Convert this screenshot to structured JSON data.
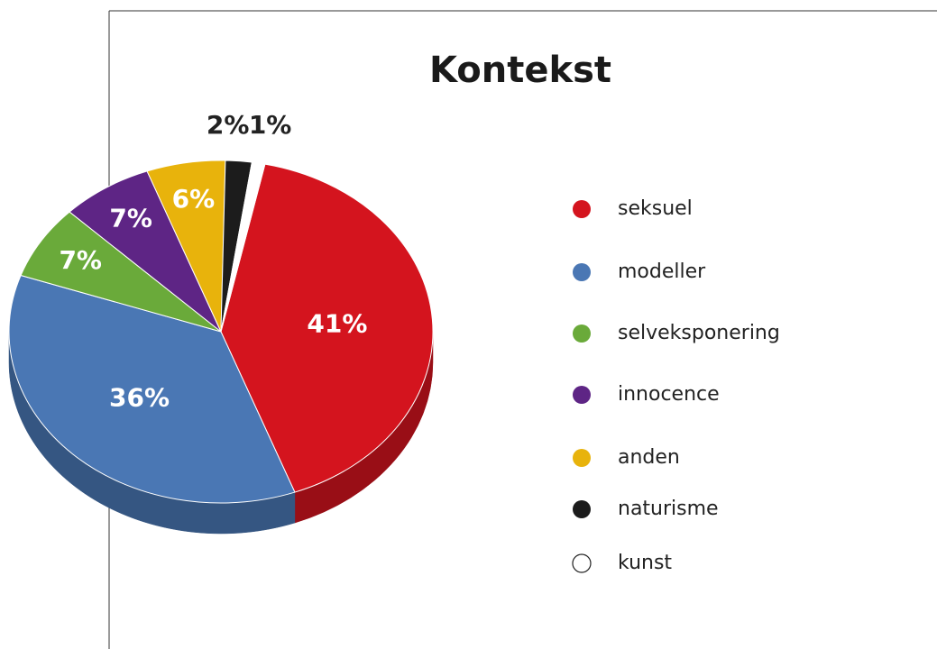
{
  "chart_data": {
    "type": "pie",
    "title": "Kontekst",
    "categories": [
      "seksuel",
      "modeller",
      "selveksponering",
      "innocence",
      "anden",
      "naturisme",
      "kunst"
    ],
    "values": [
      41,
      36,
      7,
      7,
      6,
      2,
      1
    ],
    "value_labels": [
      "41%",
      "36%",
      "7%",
      "7%",
      "6%",
      "2%",
      "1%"
    ],
    "colors": [
      "#d4141e",
      "#4a77b4",
      "#6aaa3a",
      "#5e2585",
      "#e8b30c",
      "#1c1c1c",
      "#ffffff"
    ],
    "legend": "right"
  }
}
